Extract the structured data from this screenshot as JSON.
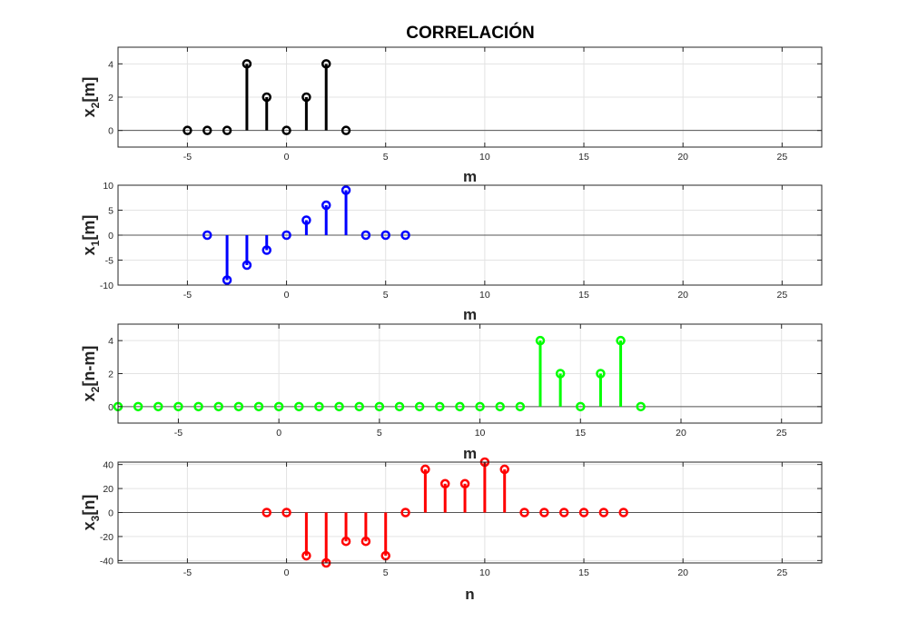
{
  "title": "CORRELACIÓN",
  "chart_data": [
    {
      "type": "stem",
      "ylabel_main": "x",
      "ylabel_sub": "2",
      "ylabel_rest": "[m]",
      "xlabel": "m",
      "color": "#000000",
      "xlim": [
        -8.5,
        27
      ],
      "ylim": [
        -1,
        5
      ],
      "xticks": [
        -5,
        0,
        5,
        10,
        15,
        20,
        25
      ],
      "yticks": [
        0,
        2,
        4
      ],
      "grid": true,
      "x": [
        -5,
        -4,
        -3,
        -2,
        -1,
        0,
        1,
        2,
        3
      ],
      "y": [
        0,
        0,
        0,
        4,
        2,
        0,
        2,
        4,
        0
      ]
    },
    {
      "type": "stem",
      "ylabel_main": "x",
      "ylabel_sub": "1",
      "ylabel_rest": "[m]",
      "xlabel": "m",
      "color": "#0000ff",
      "xlim": [
        -8.5,
        27
      ],
      "ylim": [
        -10,
        10
      ],
      "xticks": [
        -5,
        0,
        5,
        10,
        15,
        20,
        25
      ],
      "yticks": [
        -10,
        -5,
        0,
        5,
        10
      ],
      "grid": true,
      "x": [
        -4,
        -3,
        -2,
        -1,
        0,
        1,
        2,
        3,
        4,
        5,
        6
      ],
      "y": [
        0,
        -9,
        -6,
        -3,
        0,
        3,
        6,
        9,
        0,
        0,
        0
      ]
    },
    {
      "type": "stem",
      "ylabel_main": "x",
      "ylabel_sub": "2",
      "ylabel_rest": "[n-m]",
      "xlabel": "m",
      "color": "#00ff00",
      "xlim": [
        -8,
        27
      ],
      "ylim": [
        -1,
        5
      ],
      "xticks": [
        -5,
        0,
        5,
        10,
        15,
        20,
        25
      ],
      "yticks": [
        0,
        2,
        4
      ],
      "grid": true,
      "x": [
        -8,
        -7,
        -6,
        -5,
        -4,
        -3,
        -2,
        -1,
        0,
        1,
        2,
        3,
        4,
        5,
        6,
        7,
        8,
        9,
        10,
        11,
        12,
        13,
        14,
        15,
        16,
        17,
        18
      ],
      "y": [
        0,
        0,
        0,
        0,
        0,
        0,
        0,
        0,
        0,
        0,
        0,
        0,
        0,
        0,
        0,
        0,
        0,
        0,
        0,
        0,
        0,
        4,
        2,
        0,
        2,
        4,
        0
      ]
    },
    {
      "type": "stem",
      "ylabel_main": "x",
      "ylabel_sub": "3",
      "ylabel_rest": "[n]",
      "xlabel": "n",
      "color": "#ff0000",
      "xlim": [
        -8.5,
        27
      ],
      "ylim": [
        -42,
        42
      ],
      "xticks": [
        -5,
        0,
        5,
        10,
        15,
        20,
        25
      ],
      "yticks": [
        -40,
        -20,
        0,
        20,
        40
      ],
      "grid": true,
      "x": [
        -1,
        0,
        1,
        2,
        3,
        4,
        5,
        6,
        7,
        8,
        9,
        10,
        11,
        12,
        13,
        14,
        15,
        16,
        17
      ],
      "y": [
        0,
        0,
        -36,
        -42,
        -24,
        -24,
        -36,
        0,
        36,
        24,
        24,
        42,
        36,
        0,
        0,
        0,
        0,
        0,
        0
      ]
    }
  ]
}
